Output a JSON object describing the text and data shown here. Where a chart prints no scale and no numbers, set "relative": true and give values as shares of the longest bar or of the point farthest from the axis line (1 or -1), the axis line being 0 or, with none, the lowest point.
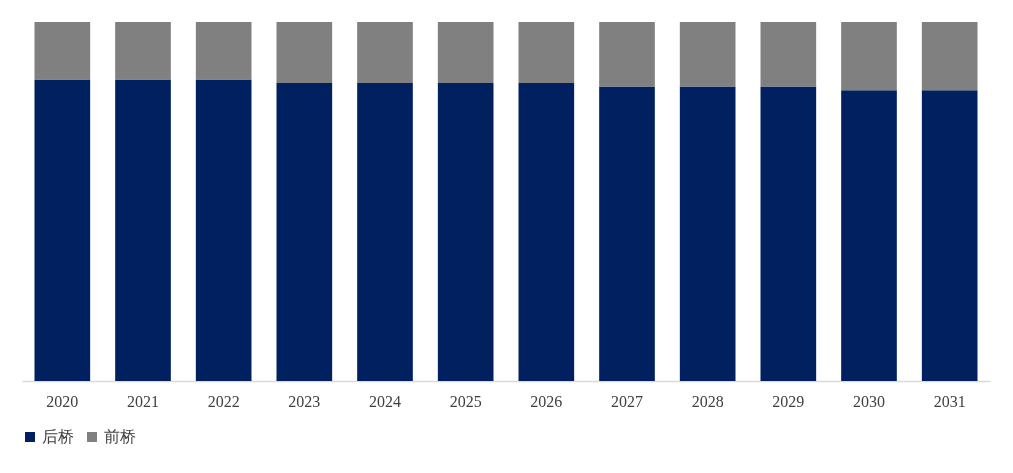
{
  "chart_data": {
    "type": "bar",
    "stacked": true,
    "relative": true,
    "legend": "bottom",
    "categories": [
      "2020",
      "2021",
      "2022",
      "2023",
      "2024",
      "2025",
      "2026",
      "2027",
      "2028",
      "2029",
      "2030",
      "2031"
    ],
    "series": [
      {
        "name": "后桥",
        "color": "#002060",
        "values": [
          0.84,
          0.84,
          0.84,
          0.83,
          0.83,
          0.83,
          0.83,
          0.82,
          0.82,
          0.82,
          0.81,
          0.81
        ]
      },
      {
        "name": "前桥",
        "color": "#808080",
        "values": [
          0.16,
          0.16,
          0.16,
          0.17,
          0.17,
          0.17,
          0.17,
          0.18,
          0.18,
          0.18,
          0.19,
          0.19
        ]
      }
    ]
  }
}
